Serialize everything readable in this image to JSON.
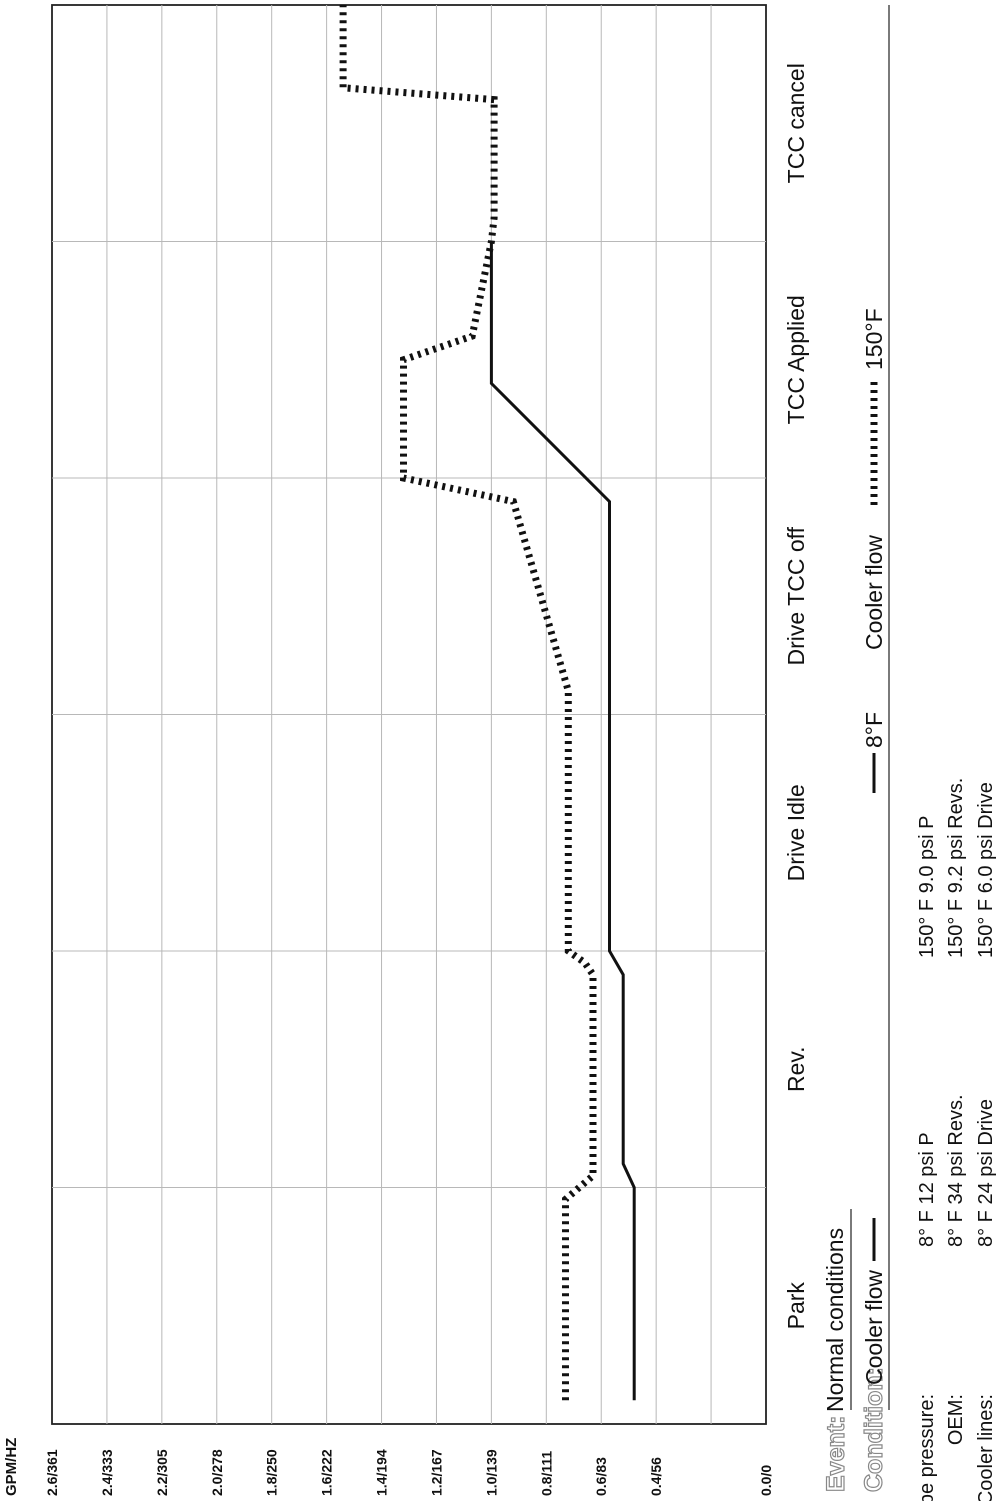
{
  "chart_data": {
    "type": "line",
    "ylabel": "GPM/HZ",
    "y_tick_labels": [
      "0.0/0",
      "0.4/56",
      "0.6/83",
      "0.8/111",
      "1.0/139",
      "1.2/167",
      "1.4/194",
      "1.6/222",
      "1.8/250",
      "2.0/278",
      "2.2/305",
      "2.4/333",
      "2.6/361"
    ],
    "ylim": [
      0,
      2.6
    ],
    "grid": true,
    "categories": [
      "Park",
      "Rev.",
      "Drive Idle",
      "Drive TCC off",
      "TCC Applied",
      "TCC cancel"
    ],
    "series": [
      {
        "name": "8°F",
        "style": "solid",
        "x": [
          0.1,
          1.0,
          1.1,
          1.9,
          2.0,
          2.9,
          3.1,
          3.9,
          4.4,
          5.0
        ],
        "y": [
          0.48,
          0.48,
          0.52,
          0.52,
          0.57,
          0.57,
          0.57,
          0.57,
          1.0,
          1.0
        ]
      },
      {
        "name": "150°F",
        "style": "dotted",
        "x": [
          0.1,
          0.95,
          1.05,
          1.9,
          1.95,
          2.0,
          2.9,
          3.1,
          3.9,
          4.0,
          4.5,
          4.6,
          5.0,
          5.1,
          5.6,
          5.65,
          6.0
        ],
        "y": [
          0.73,
          0.73,
          0.63,
          0.63,
          0.66,
          0.72,
          0.72,
          0.72,
          0.92,
          1.32,
          1.32,
          1.07,
          1.0,
          0.99,
          0.99,
          1.54,
          1.54
        ]
      }
    ]
  },
  "event": {
    "label": "Event:",
    "value": "Normal conditions"
  },
  "condition": {
    "label": "Condition:",
    "legend_solid_text": "Cooler flow",
    "legend_solid_series": "8°F",
    "legend_dotted_text": "Cooler flow",
    "legend_dotted_series": "150°F"
  },
  "readings": {
    "rows": [
      {
        "label": "Lube pressure:",
        "left": "8° F  12 psi  P",
        "right": "150° F  9.0 psi  P"
      },
      {
        "label": "OEM:",
        "left": "8° F  34 psi  Revs.",
        "right": "150° F  9.2 psi Revs."
      },
      {
        "label": "Cooler lines:",
        "left": "8° F  24 psi  Drive",
        "right": "150° F  6.0 psi Drive"
      }
    ]
  },
  "colors": {
    "line": "#111111",
    "grid": "#b8b8b8",
    "border": "#222222"
  }
}
